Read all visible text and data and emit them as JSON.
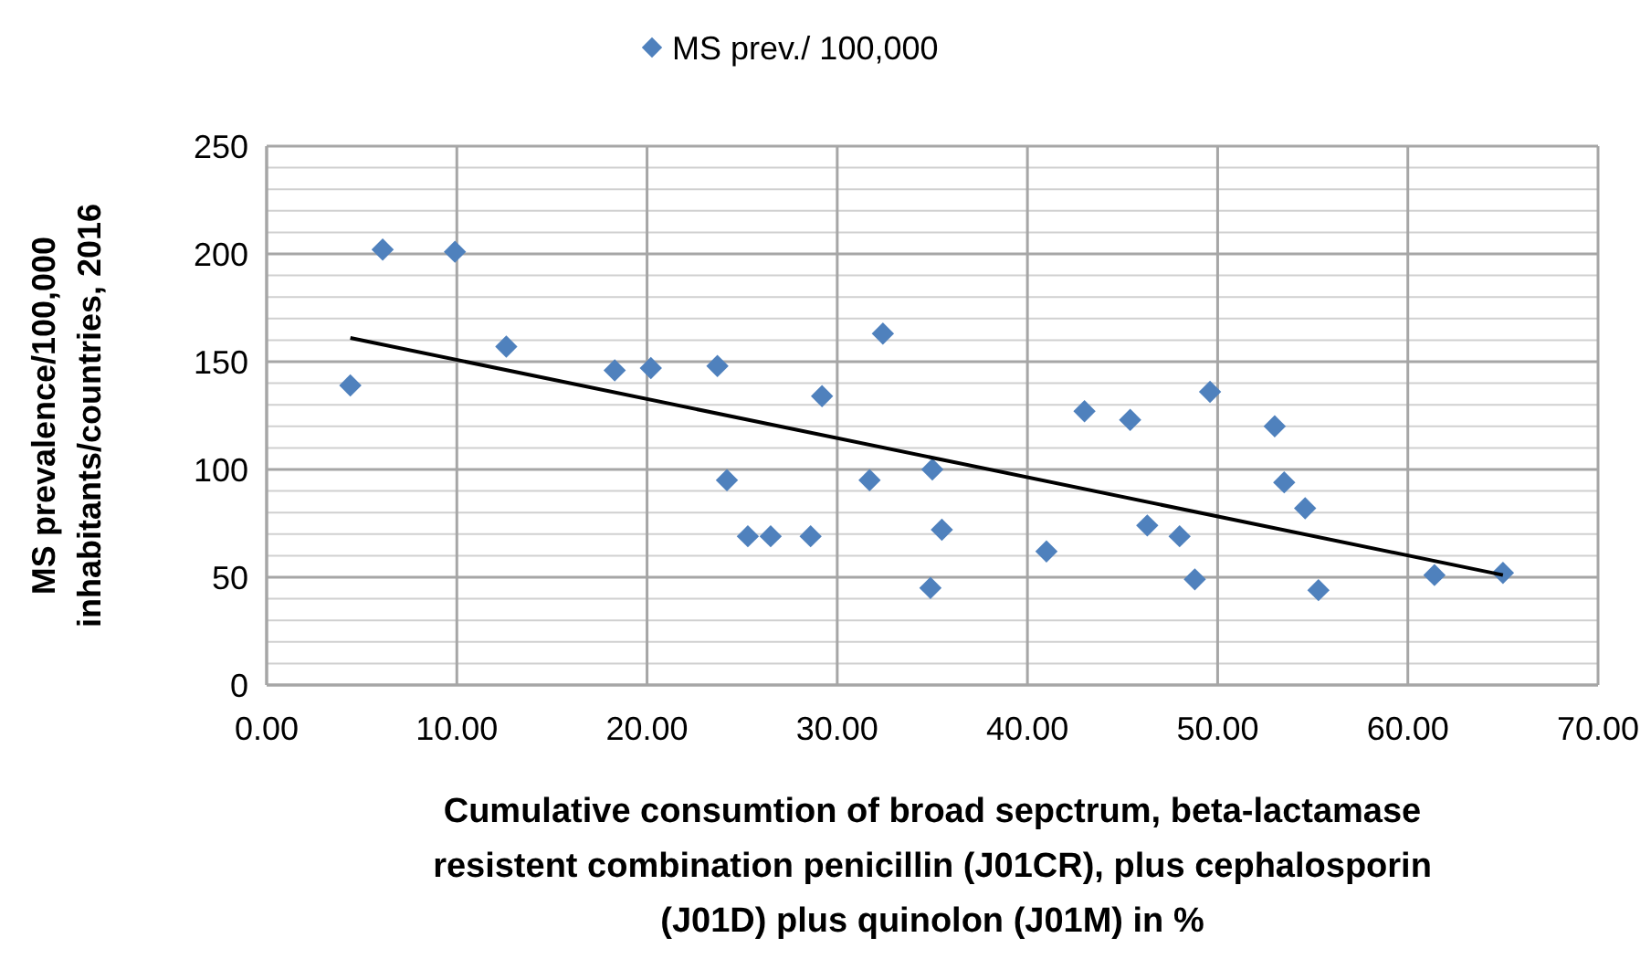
{
  "chart_data": {
    "type": "scatter",
    "xlabel": "Cumulative consumtion of broad sepctrum, beta-lactamase resistent combination penicillin (J01CR), plus cephalosporin (J01D) plus quinolon (J01M) in %",
    "ylabel": "MS prevalence/100,000 inhabitants/countries, 2016",
    "xlim": [
      0,
      70
    ],
    "xticks": [
      {
        "value": 0,
        "label": "0.00"
      },
      {
        "value": 10,
        "label": "10.00"
      },
      {
        "value": 20,
        "label": "20.00"
      },
      {
        "value": 30,
        "label": "30.00"
      },
      {
        "value": 40,
        "label": "40.00"
      },
      {
        "value": 50,
        "label": "50.00"
      },
      {
        "value": 60,
        "label": "60.00"
      },
      {
        "value": 70,
        "label": "70.00"
      }
    ],
    "ylim": [
      0,
      250
    ],
    "yticks": [
      0,
      {
        "value": 10,
        "label": null
      },
      {
        "value": 20,
        "label": null
      },
      {
        "value": 30,
        "label": null
      },
      {
        "value": 40,
        "label": null
      },
      50,
      {
        "value": 60,
        "label": null
      },
      {
        "value": 70,
        "label": null
      },
      {
        "value": 80,
        "label": null
      },
      {
        "value": 90,
        "label": null
      },
      100,
      {
        "value": 110,
        "label": null
      },
      {
        "value": 120,
        "label": null
      },
      {
        "value": 130,
        "label": null
      },
      {
        "value": 140,
        "label": null
      },
      150,
      {
        "value": 160,
        "label": null
      },
      {
        "value": 170,
        "label": null
      },
      {
        "value": 180,
        "label": null
      },
      {
        "value": 190,
        "label": null
      },
      200,
      {
        "value": 210,
        "label": null
      },
      {
        "value": 220,
        "label": null
      },
      {
        "value": 230,
        "label": null
      },
      {
        "value": 240,
        "label": null
      },
      250
    ],
    "grid": true,
    "legend": "top",
    "marker": "diamond",
    "series": [
      {
        "name": "MS prev./ 100,000",
        "color": "#4f81bd",
        "x": [
          4.4,
          6.1,
          9.9,
          12.6,
          18.3,
          20.2,
          23.7,
          24.2,
          25.3,
          26.5,
          28.6,
          29.2,
          31.7,
          32.4,
          34.9,
          35.0,
          35.5,
          41.0,
          43.0,
          45.4,
          46.3,
          48.0,
          48.8,
          49.6,
          53.0,
          53.5,
          54.6,
          55.3,
          61.4,
          65.0
        ],
        "values": [
          139,
          202,
          201,
          157,
          146,
          147,
          148,
          95,
          69,
          69,
          69,
          134,
          95,
          163,
          45,
          100,
          72,
          62,
          127,
          123,
          74,
          69,
          49,
          136,
          120,
          94,
          82,
          44,
          51,
          52
        ]
      },
      {
        "type": "line",
        "color": "#000000",
        "marker": "none",
        "x": [
          4.4,
          65.0
        ],
        "values": [
          161,
          51
        ]
      }
    ]
  }
}
